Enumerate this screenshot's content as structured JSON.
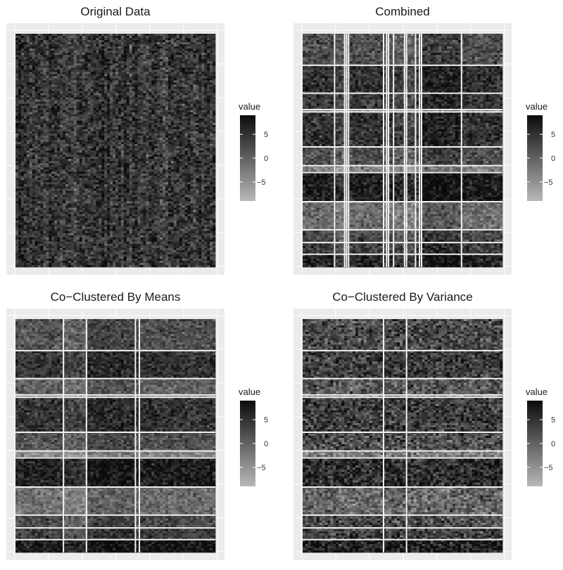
{
  "colors": {
    "panel_bg": "#ebebeb",
    "grid": "#ffffff",
    "low": "#b8b8b8",
    "high": "#0b0b0b",
    "separator": "#f2f2f2"
  },
  "chart_data": [
    {
      "type": "heatmap",
      "title": "Original Data",
      "legend": {
        "title": "value",
        "ticks": [
          5,
          0,
          -5
        ],
        "range": [
          -9,
          9
        ]
      },
      "row_groups": [],
      "col_groups": [],
      "row_breaks": [],
      "col_breaks": [],
      "value_distribution": "uniform noise, mostly dark"
    },
    {
      "type": "heatmap",
      "title": "Combined",
      "legend": {
        "title": "value",
        "ticks": [
          5,
          0,
          -5
        ],
        "range": [
          -9,
          9
        ]
      },
      "row_breaks": [
        0.135,
        0.255,
        0.325,
        0.335,
        0.485,
        0.565,
        0.595,
        0.72,
        0.84,
        0.895,
        0.945
      ],
      "col_breaks": [
        0.16,
        0.21,
        0.22,
        0.23,
        0.405,
        0.42,
        0.43,
        0.455,
        0.51,
        0.52,
        0.565,
        0.585,
        0.595,
        0.795
      ],
      "row_levels": [
        1.5,
        4.5,
        4,
        -2.5,
        4.5,
        1.5,
        -4,
        6.5,
        -1.5,
        2,
        3.5,
        6
      ],
      "col_offsets": [
        0.5,
        -1.5,
        -2,
        0,
        0.5,
        0,
        -1.5,
        0,
        -1,
        1,
        -2,
        0,
        1.5,
        2.5,
        0.5
      ],
      "noise": 2.2
    },
    {
      "type": "heatmap",
      "title": "Co−Clustered By Means",
      "legend": {
        "title": "value",
        "ticks": [
          5,
          0,
          -5
        ],
        "range": [
          -9,
          9
        ]
      },
      "row_breaks": [
        0.135,
        0.255,
        0.325,
        0.335,
        0.485,
        0.565,
        0.595,
        0.72,
        0.84,
        0.895,
        0.945
      ],
      "col_breaks": [
        0.24,
        0.355,
        0.6,
        0.62
      ],
      "row_levels": [
        1.5,
        4.5,
        0,
        -2.5,
        4.5,
        1.5,
        -4,
        6.5,
        -1.5,
        2,
        3.5,
        7.5
      ],
      "col_offsets": [
        0,
        -1.5,
        1.5,
        0.5,
        0.5
      ],
      "noise": 2.0
    },
    {
      "type": "heatmap",
      "title": "Co−Clustered By Variance",
      "legend": {
        "title": "value",
        "ticks": [
          5,
          0,
          -5
        ],
        "range": [
          -9,
          9
        ]
      },
      "row_breaks": [
        0.135,
        0.255,
        0.325,
        0.335,
        0.485,
        0.565,
        0.595,
        0.72,
        0.84,
        0.895,
        0.945
      ],
      "col_breaks": [
        0.405,
        0.52
      ],
      "row_levels": [
        2.5,
        4,
        1,
        -1.5,
        4,
        2,
        -3,
        5.5,
        -0.5,
        2.5,
        3.5,
        7
      ],
      "col_offsets": [
        0,
        0,
        0
      ],
      "noise": 3.0
    }
  ]
}
